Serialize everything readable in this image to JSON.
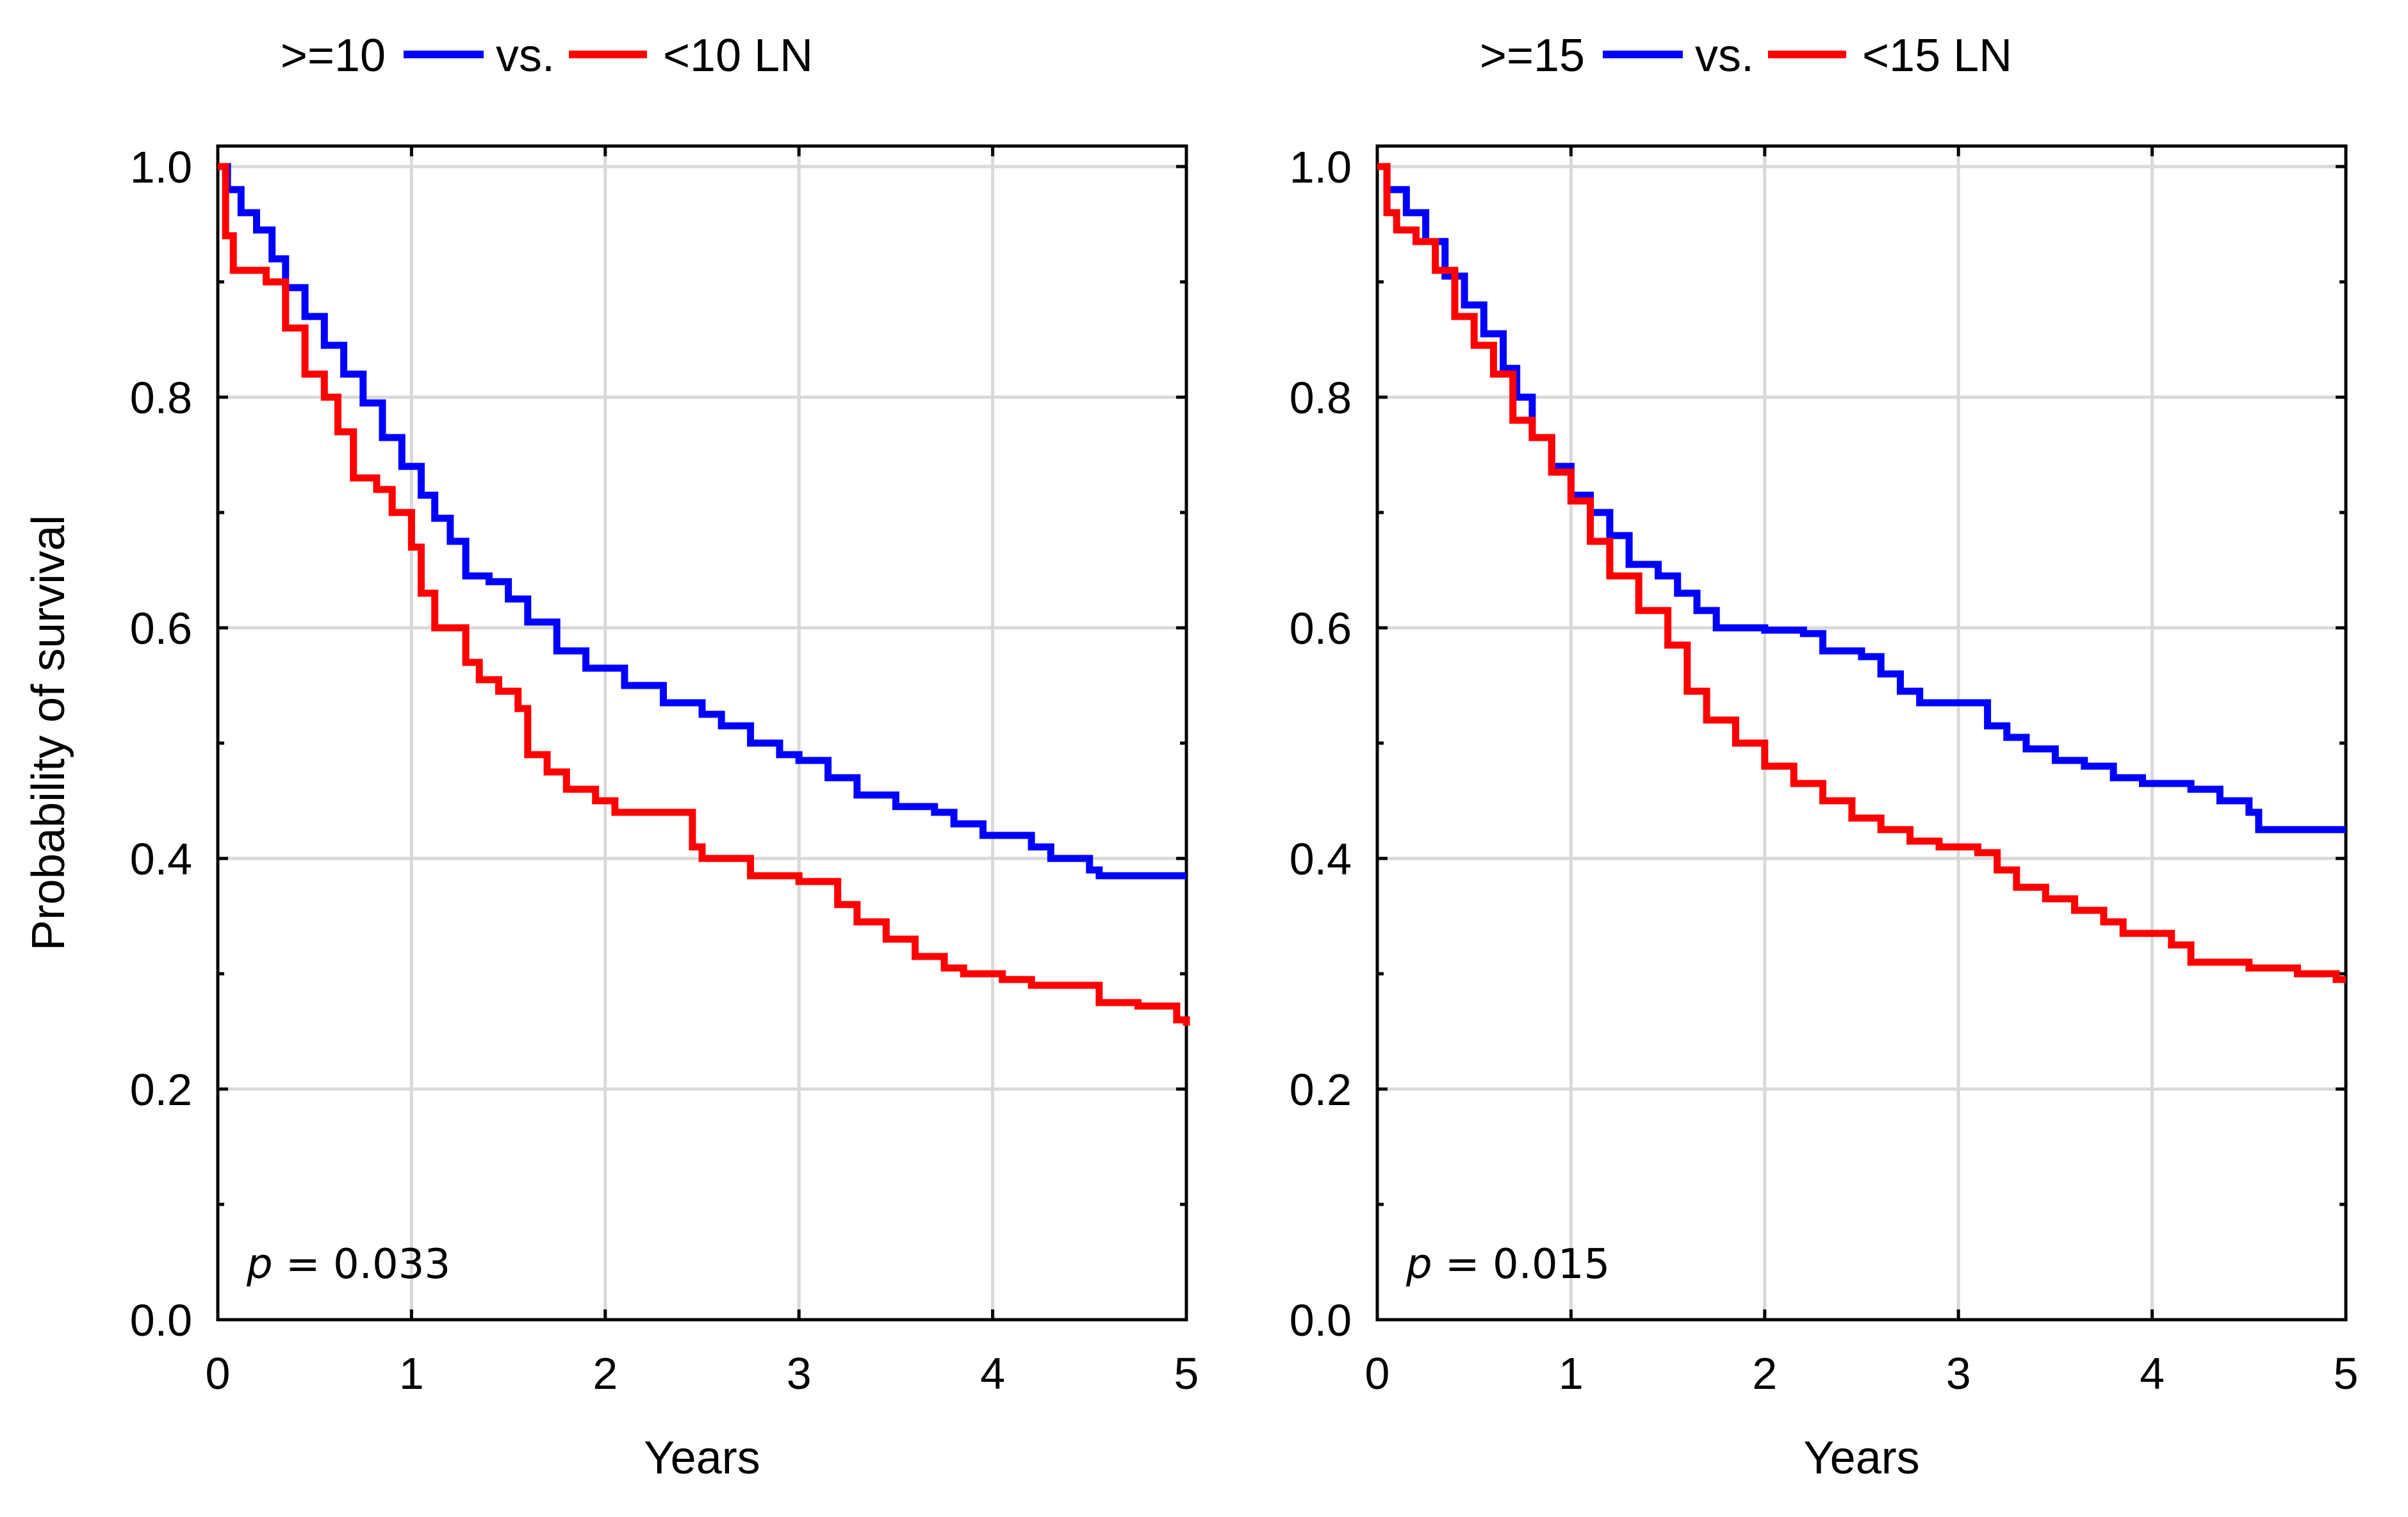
{
  "chart_data": [
    {
      "type": "line",
      "title": "",
      "legend": {
        "left_label": ">=10",
        "sep_label": "vs.",
        "right_label": "<10 LN"
      },
      "xlabel": "Years",
      "ylabel": "Probability of survival",
      "xlim": [
        0,
        5
      ],
      "ylim": [
        0,
        1
      ],
      "xticks": [
        "0",
        "1",
        "2",
        "3",
        "4",
        "5"
      ],
      "yticks": [
        "0.0",
        "0.2",
        "0.4",
        "0.6",
        "0.8",
        "1.0"
      ],
      "p_label": "p",
      "p_value": "= 0.033",
      "series": [
        {
          "name": ">=10",
          "color": "#0000ff",
          "x": [
            0,
            0.05,
            0.12,
            0.2,
            0.28,
            0.35,
            0.45,
            0.55,
            0.65,
            0.75,
            0.85,
            0.95,
            1.05,
            1.12,
            1.2,
            1.28,
            1.4,
            1.5,
            1.6,
            1.75,
            1.9,
            2.1,
            2.3,
            2.5,
            2.6,
            2.75,
            2.9,
            3.0,
            3.15,
            3.3,
            3.5,
            3.7,
            3.8,
            3.95,
            4.2,
            4.3,
            4.5,
            4.55,
            5.0
          ],
          "y": [
            1.0,
            0.98,
            0.96,
            0.945,
            0.92,
            0.895,
            0.87,
            0.845,
            0.82,
            0.795,
            0.765,
            0.74,
            0.715,
            0.695,
            0.675,
            0.645,
            0.64,
            0.625,
            0.605,
            0.58,
            0.565,
            0.55,
            0.535,
            0.525,
            0.515,
            0.5,
            0.49,
            0.485,
            0.47,
            0.455,
            0.445,
            0.44,
            0.43,
            0.42,
            0.41,
            0.4,
            0.39,
            0.385,
            0.385
          ]
        },
        {
          "name": "<10 LN",
          "color": "#ff0000",
          "x": [
            0,
            0.04,
            0.08,
            0.25,
            0.35,
            0.45,
            0.55,
            0.62,
            0.7,
            0.82,
            0.9,
            1.0,
            1.05,
            1.12,
            1.28,
            1.35,
            1.45,
            1.55,
            1.6,
            1.7,
            1.8,
            1.95,
            2.05,
            2.45,
            2.5,
            2.75,
            3.0,
            3.2,
            3.3,
            3.45,
            3.6,
            3.75,
            3.85,
            4.05,
            4.2,
            4.55,
            4.75,
            4.95,
            5.0
          ],
          "y": [
            1.0,
            0.94,
            0.91,
            0.9,
            0.86,
            0.82,
            0.8,
            0.77,
            0.73,
            0.72,
            0.7,
            0.67,
            0.63,
            0.6,
            0.57,
            0.555,
            0.545,
            0.53,
            0.49,
            0.475,
            0.46,
            0.45,
            0.44,
            0.41,
            0.4,
            0.385,
            0.38,
            0.36,
            0.345,
            0.33,
            0.315,
            0.305,
            0.3,
            0.295,
            0.29,
            0.275,
            0.272,
            0.26,
            0.255
          ]
        }
      ]
    },
    {
      "type": "line",
      "title": "",
      "legend": {
        "left_label": ">=15",
        "sep_label": "vs.",
        "right_label": "<15 LN"
      },
      "xlabel": "Years",
      "ylabel": "",
      "xlim": [
        0,
        5
      ],
      "ylim": [
        0,
        1
      ],
      "xticks": [
        "0",
        "1",
        "2",
        "3",
        "4",
        "5"
      ],
      "yticks": [
        "0.0",
        "0.2",
        "0.4",
        "0.6",
        "0.8",
        "1.0"
      ],
      "p_label": "p",
      "p_value": "= 0.015",
      "series": [
        {
          "name": ">=15",
          "color": "#0000ff",
          "x": [
            0,
            0.05,
            0.15,
            0.25,
            0.35,
            0.45,
            0.55,
            0.65,
            0.72,
            0.8,
            0.9,
            1.0,
            1.1,
            1.2,
            1.3,
            1.45,
            1.55,
            1.65,
            1.75,
            2.0,
            2.2,
            2.3,
            2.5,
            2.6,
            2.7,
            2.8,
            3.0,
            3.15,
            3.25,
            3.35,
            3.5,
            3.65,
            3.8,
            3.95,
            4.2,
            4.35,
            4.5,
            4.55,
            5.0
          ],
          "y": [
            1.0,
            0.98,
            0.96,
            0.935,
            0.905,
            0.88,
            0.855,
            0.825,
            0.8,
            0.765,
            0.74,
            0.715,
            0.7,
            0.68,
            0.655,
            0.645,
            0.63,
            0.615,
            0.6,
            0.598,
            0.595,
            0.58,
            0.575,
            0.56,
            0.545,
            0.535,
            0.535,
            0.515,
            0.505,
            0.495,
            0.485,
            0.48,
            0.47,
            0.465,
            0.46,
            0.45,
            0.44,
            0.425,
            0.425
          ]
        },
        {
          "name": "<15 LN",
          "color": "#ff0000",
          "x": [
            0,
            0.05,
            0.1,
            0.2,
            0.3,
            0.4,
            0.5,
            0.6,
            0.7,
            0.8,
            0.9,
            1.0,
            1.1,
            1.2,
            1.35,
            1.5,
            1.6,
            1.7,
            1.85,
            2.0,
            2.15,
            2.3,
            2.45,
            2.6,
            2.75,
            2.9,
            3.1,
            3.2,
            3.3,
            3.45,
            3.6,
            3.75,
            3.85,
            4.1,
            4.2,
            4.5,
            4.75,
            4.95,
            5.0
          ],
          "y": [
            1.0,
            0.96,
            0.945,
            0.935,
            0.91,
            0.87,
            0.845,
            0.82,
            0.78,
            0.765,
            0.735,
            0.71,
            0.675,
            0.645,
            0.615,
            0.585,
            0.545,
            0.52,
            0.5,
            0.48,
            0.465,
            0.45,
            0.435,
            0.425,
            0.415,
            0.41,
            0.405,
            0.39,
            0.375,
            0.365,
            0.355,
            0.345,
            0.335,
            0.325,
            0.31,
            0.305,
            0.3,
            0.295,
            0.295
          ]
        }
      ]
    }
  ]
}
